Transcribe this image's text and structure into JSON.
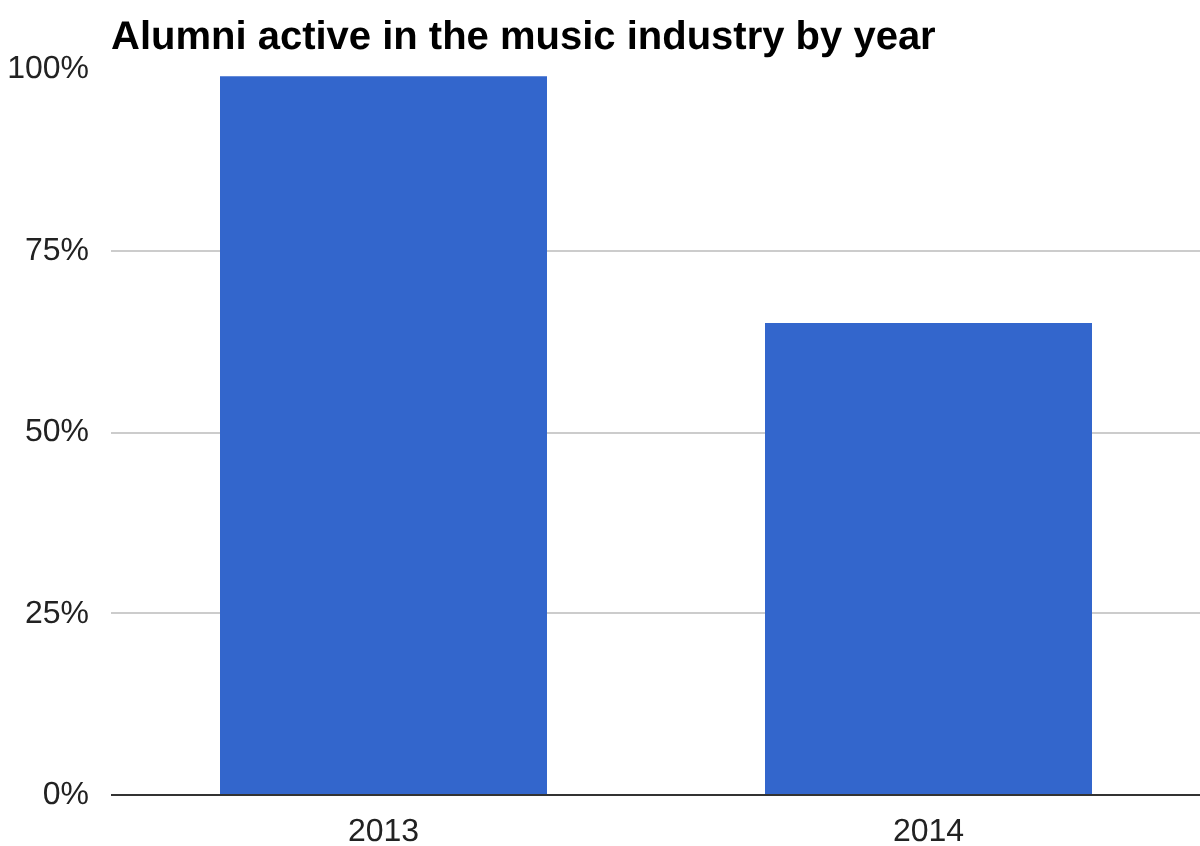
{
  "chart_data": {
    "type": "bar",
    "title": "Alumni active in the music industry by year",
    "categories": [
      "2013",
      "2014"
    ],
    "values": [
      99,
      65
    ],
    "color": "#3366cc",
    "ylim": [
      0,
      100
    ],
    "yticks": [
      {
        "value": 0,
        "label": "0%"
      },
      {
        "value": 25,
        "label": "25%"
      },
      {
        "value": 50,
        "label": "50%"
      },
      {
        "value": 75,
        "label": "75%"
      },
      {
        "value": 100,
        "label": "100%"
      }
    ],
    "grid": "y"
  }
}
